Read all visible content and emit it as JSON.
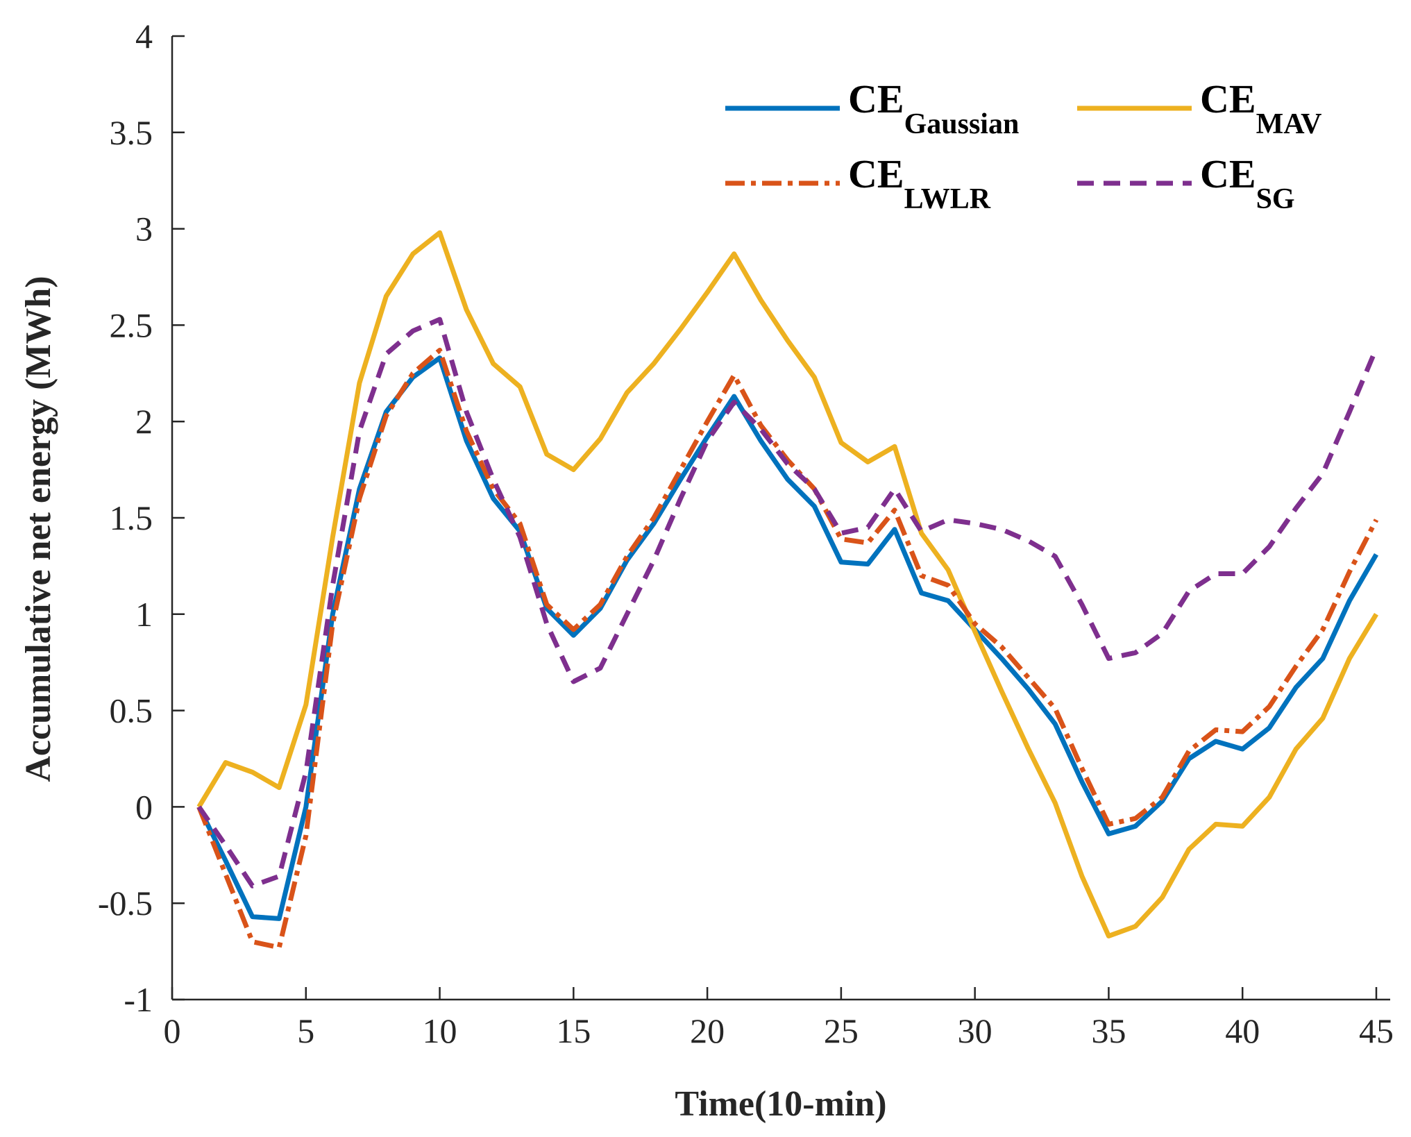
{
  "chart_data": {
    "type": "line",
    "title": "",
    "xlabel": "Time(10-min)",
    "ylabel": "Accumulative net energy (MWh)",
    "xlim": [
      0,
      45
    ],
    "ylim": [
      -1,
      4
    ],
    "xticks": [
      0,
      5,
      10,
      15,
      20,
      25,
      30,
      35,
      40,
      45
    ],
    "xtick_labels": [
      "0",
      "5",
      "10",
      "15",
      "20",
      "25",
      "30",
      "35",
      "40",
      "45"
    ],
    "yticks": [
      -1,
      -0.5,
      0,
      0.5,
      1,
      1.5,
      2,
      2.5,
      3,
      3.5,
      4
    ],
    "ytick_labels": [
      "-1",
      "-0.5",
      "0",
      "0.5",
      "1",
      "1.5",
      "2",
      "2.5",
      "3",
      "3.5",
      "4"
    ],
    "grid": false,
    "legend_position": "top-right",
    "x": [
      1,
      2,
      3,
      4,
      5,
      6,
      7,
      8,
      9,
      10,
      11,
      12,
      13,
      14,
      15,
      16,
      17,
      18,
      19,
      20,
      21,
      22,
      23,
      24,
      25,
      26,
      27,
      28,
      29,
      30,
      31,
      32,
      33,
      34,
      35,
      36,
      37,
      38,
      39,
      40,
      41,
      42,
      43,
      44,
      45
    ],
    "series": [
      {
        "name": "CE_Gaussian",
        "legend_main": "CE",
        "legend_sub": "Gaussian",
        "color": "#0072BD",
        "style": "solid",
        "values": [
          0,
          -0.28,
          -0.57,
          -0.58,
          0.0,
          1.0,
          1.65,
          2.05,
          2.23,
          2.33,
          1.9,
          1.6,
          1.43,
          1.03,
          0.89,
          1.03,
          1.28,
          1.47,
          1.7,
          1.92,
          2.13,
          1.9,
          1.7,
          1.56,
          1.27,
          1.26,
          1.44,
          1.11,
          1.07,
          0.92,
          0.77,
          0.61,
          0.43,
          0.13,
          -0.14,
          -0.1,
          0.03,
          0.25,
          0.34,
          0.3,
          0.41,
          0.62,
          0.77,
          1.07,
          1.31
        ]
      },
      {
        "name": "CE_MAV",
        "legend_main": "CE",
        "legend_sub": "MAV",
        "color": "#EDB120",
        "style": "solid",
        "values": [
          0,
          0.23,
          0.18,
          0.1,
          0.53,
          1.4,
          2.2,
          2.65,
          2.87,
          2.98,
          2.58,
          2.3,
          2.18,
          1.83,
          1.75,
          1.91,
          2.15,
          2.3,
          2.48,
          2.67,
          2.87,
          2.63,
          2.42,
          2.23,
          1.89,
          1.79,
          1.87,
          1.42,
          1.23,
          0.91,
          0.6,
          0.3,
          0.02,
          -0.36,
          -0.67,
          -0.62,
          -0.47,
          -0.22,
          -0.09,
          -0.1,
          0.05,
          0.3,
          0.46,
          0.77,
          1.0
        ]
      },
      {
        "name": "CE_LWLR",
        "legend_main": "CE",
        "legend_sub": "LWLR",
        "color": "#D95319",
        "style": "dashdot",
        "values": [
          0,
          -0.35,
          -0.7,
          -0.73,
          -0.15,
          0.95,
          1.6,
          2.03,
          2.25,
          2.37,
          1.95,
          1.65,
          1.47,
          1.05,
          0.92,
          1.05,
          1.3,
          1.5,
          1.75,
          2.0,
          2.24,
          1.98,
          1.8,
          1.65,
          1.39,
          1.37,
          1.54,
          1.2,
          1.15,
          0.95,
          0.83,
          0.67,
          0.51,
          0.2,
          -0.09,
          -0.06,
          0.05,
          0.29,
          0.4,
          0.39,
          0.52,
          0.73,
          0.92,
          1.22,
          1.49
        ]
      },
      {
        "name": "CE_SG",
        "legend_main": "CE",
        "legend_sub": "SG",
        "color": "#7E2F8E",
        "style": "dashed",
        "values": [
          0,
          -0.2,
          -0.41,
          -0.36,
          0.18,
          1.15,
          1.95,
          2.35,
          2.47,
          2.53,
          2.05,
          1.7,
          1.4,
          0.95,
          0.65,
          0.72,
          1.0,
          1.28,
          1.6,
          1.9,
          2.1,
          1.96,
          1.78,
          1.65,
          1.42,
          1.45,
          1.65,
          1.43,
          1.49,
          1.47,
          1.44,
          1.38,
          1.3,
          1.05,
          0.77,
          0.8,
          0.9,
          1.12,
          1.21,
          1.21,
          1.35,
          1.55,
          1.73,
          2.05,
          2.38
        ]
      }
    ]
  }
}
